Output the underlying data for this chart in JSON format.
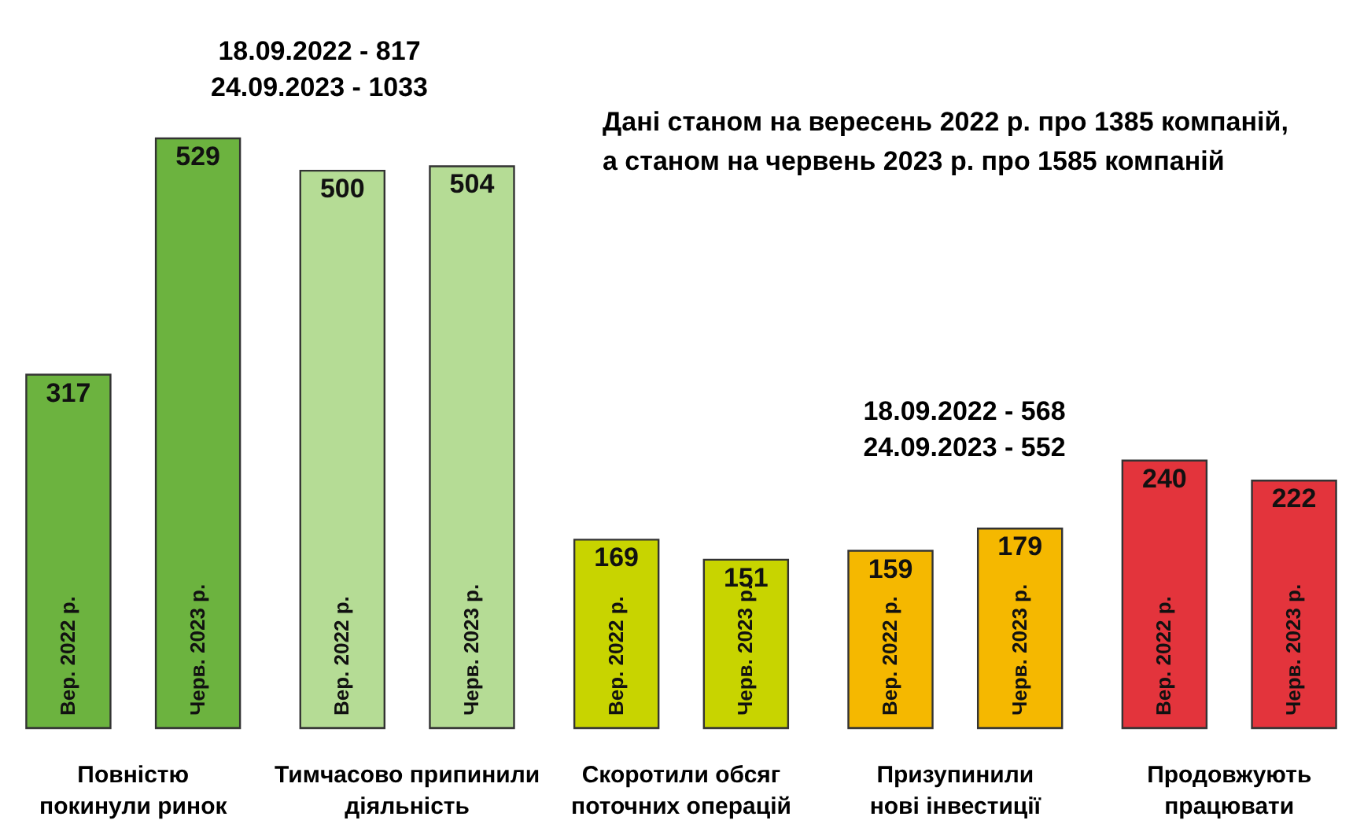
{
  "chart_data": {
    "type": "bar",
    "categories": [
      "Повністю покинули ринок",
      "Тимчасово припинили діяльність",
      "Скоротили обсяг поточних операцій",
      "Призупинили нові інвестиції",
      "Продовжують працювати"
    ],
    "series": [
      {
        "name": "Вер. 2022 р.",
        "values": [
          317,
          500,
          169,
          159,
          240
        ],
        "colors": [
          "#6cb33f",
          "#b5dc95",
          "#c8d400",
          "#f5b800",
          "#e3343c"
        ]
      },
      {
        "name": "Черв. 2023 р.",
        "values": [
          529,
          504,
          151,
          179,
          222
        ],
        "colors": [
          "#6cb33f",
          "#b5dc95",
          "#c8d400",
          "#f5b800",
          "#e3343c"
        ]
      }
    ],
    "data_labels": true,
    "annotations": [
      "18.09.2022 - 817",
      "24.09.2023 - 1033",
      "Дані станом на вересень 2022 р. про 1385 компаній,",
      "а станом на червень 2023 р. про 1585 компаній",
      "18.09.2022 - 568",
      "24.09.2023 - 552"
    ]
  }
}
